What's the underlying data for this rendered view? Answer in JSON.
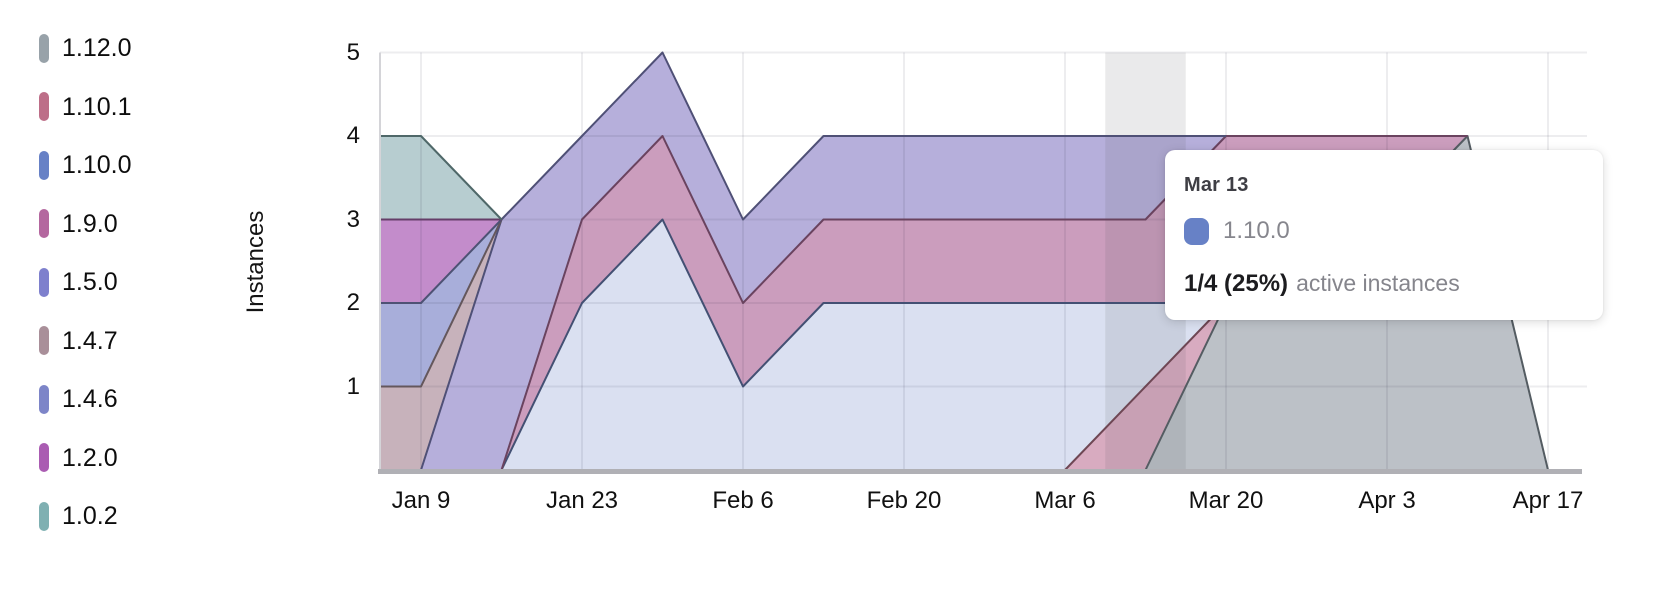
{
  "legend": {
    "items": [
      {
        "label": "1.12.0",
        "color": "#98a2a9"
      },
      {
        "label": "1.10.1",
        "color": "#bd6e88"
      },
      {
        "label": "1.10.0",
        "color": "#6781c6"
      },
      {
        "label": "1.9.0",
        "color": "#b4679f"
      },
      {
        "label": "1.5.0",
        "color": "#7e80cd"
      },
      {
        "label": "1.4.7",
        "color": "#a98f99"
      },
      {
        "label": "1.4.6",
        "color": "#7d85c8"
      },
      {
        "label": "1.2.0",
        "color": "#aa5cb2"
      },
      {
        "label": "1.0.2",
        "color": "#7fb0b2"
      }
    ]
  },
  "tooltip": {
    "date": "Mar 13",
    "series": "1.10.0",
    "swatch_color": "#6781c6",
    "value": "1/4 (25%)",
    "suffix": "active instances"
  },
  "chart_data": {
    "type": "area",
    "stacked": true,
    "title": "",
    "xlabel": "",
    "ylabel": "Instances",
    "ylim": [
      0,
      5
    ],
    "y_ticks": [
      1,
      2,
      3,
      4,
      5
    ],
    "grid": true,
    "legend_position": "left",
    "x": [
      "Jan 2",
      "Jan 9",
      "Jan 16",
      "Jan 23",
      "Jan 30",
      "Feb 6",
      "Feb 13",
      "Feb 20",
      "Feb 27",
      "Mar 6",
      "Mar 13",
      "Mar 20",
      "Mar 27",
      "Apr 3",
      "Apr 10",
      "Apr 17"
    ],
    "x_tick_labels": [
      "Jan 9",
      "Jan 23",
      "Feb 6",
      "Feb 20",
      "Mar 6",
      "Mar 20",
      "Apr 3",
      "Apr 17"
    ],
    "hover_highlight_x": "Mar 13",
    "series": [
      {
        "name": "1.12.0",
        "color": "#98a2a9",
        "fill": "#bcc1c7",
        "stroke": "#545c62",
        "values": [
          0,
          0,
          0,
          0,
          0,
          0,
          0,
          0,
          0,
          0,
          0,
          2,
          3,
          3,
          4,
          0
        ]
      },
      {
        "name": "1.10.1",
        "color": "#bd6e88",
        "fill": "#d8abc0",
        "stroke": "#6e4754",
        "values": [
          0,
          0,
          0,
          0,
          0,
          0,
          0,
          0,
          0,
          0,
          1,
          0,
          0,
          0,
          0,
          0
        ]
      },
      {
        "name": "1.10.0",
        "color": "#6781c6",
        "fill": "#dae0f1",
        "stroke": "#435073",
        "values": [
          0,
          0,
          0,
          2,
          3,
          1,
          2,
          2,
          2,
          2,
          1,
          0,
          0,
          0,
          0,
          0
        ]
      },
      {
        "name": "1.9.0",
        "color": "#b4679f",
        "fill": "#cb9dbd",
        "stroke": "#6a435f",
        "values": [
          0,
          0,
          0,
          1,
          1,
          1,
          1,
          1,
          1,
          1,
          1,
          2,
          1,
          1,
          0,
          0
        ]
      },
      {
        "name": "1.5.0",
        "color": "#7e80cd",
        "fill": "#b6afdb",
        "stroke": "#4f5076",
        "values": [
          0,
          0,
          3,
          1,
          1,
          1,
          1,
          1,
          1,
          1,
          1,
          0,
          0,
          0,
          0,
          0
        ]
      },
      {
        "name": "1.4.7",
        "color": "#a98f99",
        "fill": "#c7b2bb",
        "stroke": "#64575c",
        "values": [
          1,
          1,
          0,
          0,
          0,
          0,
          0,
          0,
          0,
          0,
          0,
          0,
          0,
          0,
          0,
          0
        ]
      },
      {
        "name": "1.4.6",
        "color": "#7d85c8",
        "fill": "#a8aeda",
        "stroke": "#4e5274",
        "values": [
          1,
          1,
          0,
          0,
          0,
          0,
          0,
          0,
          0,
          0,
          0,
          0,
          0,
          0,
          0,
          0
        ]
      },
      {
        "name": "1.2.0",
        "color": "#aa5cb2",
        "fill": "#c38ccb",
        "stroke": "#653e69",
        "values": [
          1,
          1,
          0,
          0,
          0,
          0,
          0,
          0,
          0,
          0,
          0,
          0,
          0,
          0,
          0,
          0
        ]
      },
      {
        "name": "1.0.2",
        "color": "#7fb0b2",
        "fill": "#b7cdd0",
        "stroke": "#4f6869",
        "values": [
          1,
          1,
          0,
          0,
          0,
          0,
          0,
          0,
          0,
          0,
          0,
          0,
          0,
          0,
          0,
          0
        ]
      }
    ]
  }
}
